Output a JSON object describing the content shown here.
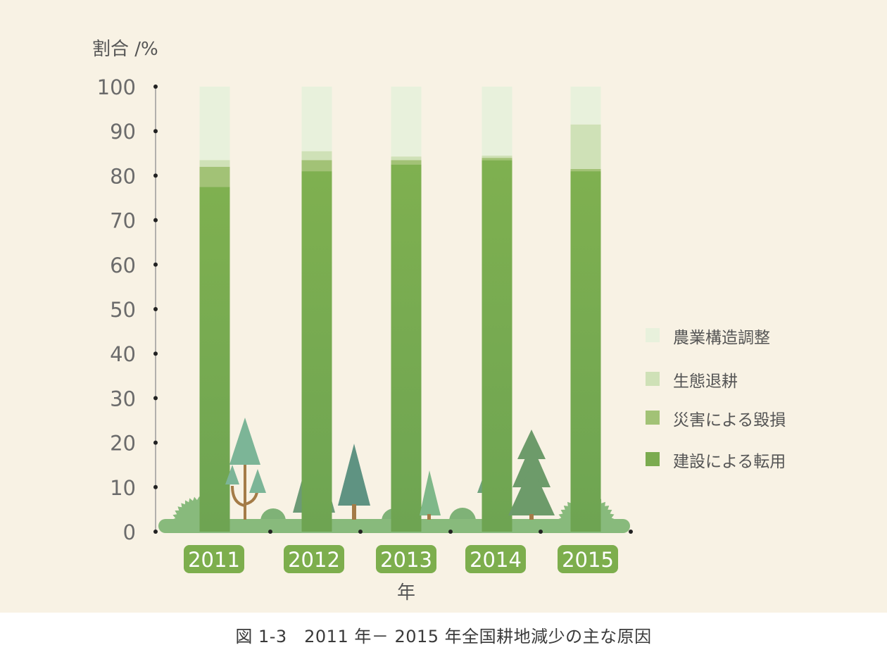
{
  "chart_data": {
    "type": "bar",
    "stacked": true,
    "ylabel": "割合 /%",
    "xlabel": "年",
    "ylim": [
      0,
      100
    ],
    "yticks": [
      0,
      10,
      20,
      30,
      40,
      50,
      60,
      70,
      80,
      90,
      100
    ],
    "categories": [
      "2011",
      "2012",
      "2013",
      "2014",
      "2015"
    ],
    "series": [
      {
        "name": "建設による転用",
        "color": "#7bab4f",
        "values": [
          77.5,
          81,
          82.5,
          83.5,
          81
        ]
      },
      {
        "name": "災害による毀損",
        "color": "#a2c276",
        "values": [
          4.5,
          2.5,
          1,
          0.5,
          0.5
        ]
      },
      {
        "name": "生態退耕",
        "color": "#cfe1b7",
        "values": [
          1.5,
          2,
          0.8,
          0.5,
          10
        ]
      },
      {
        "name": "農業構造調整",
        "color": "#e8f1dc",
        "values": [
          16.5,
          14.5,
          15.7,
          15.5,
          8.5
        ]
      }
    ],
    "legend_position": "right",
    "grid": false
  },
  "caption": "図 1-3　2011 年－ 2015 年全国耕地減少の主な原因"
}
